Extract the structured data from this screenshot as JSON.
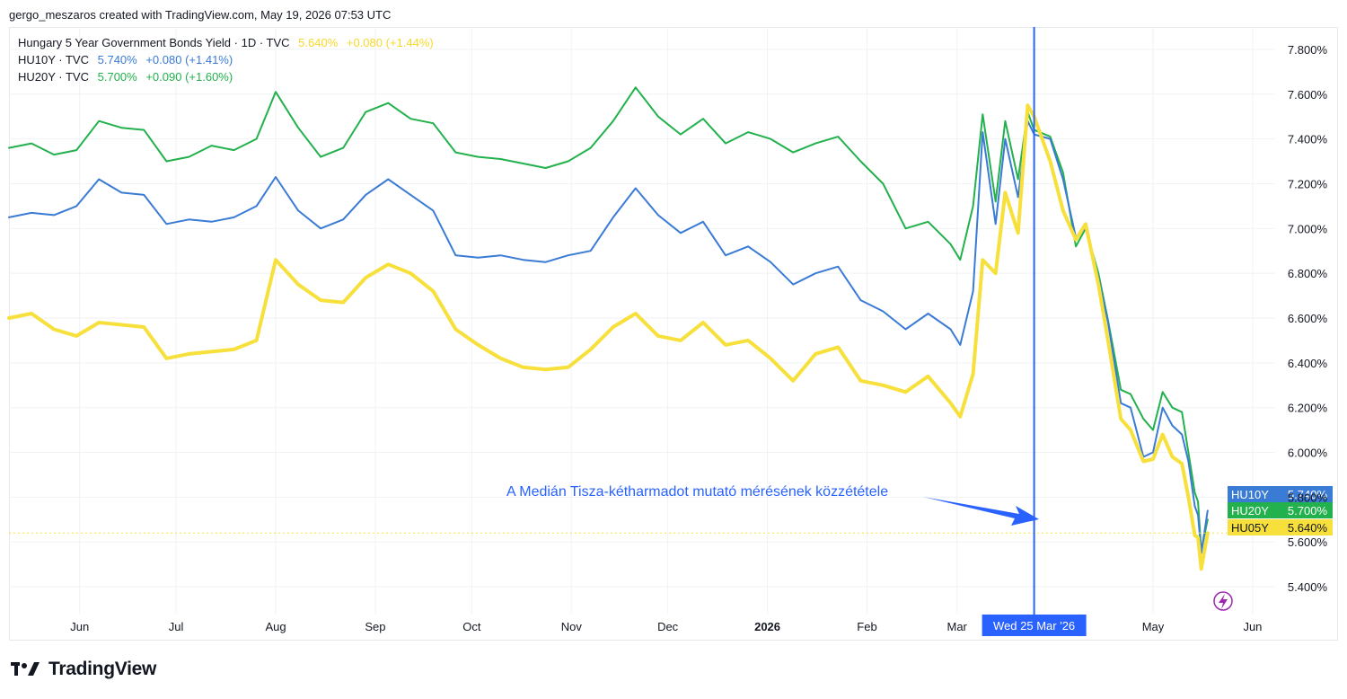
{
  "header": {
    "credit": "gergo_meszaros created with TradingView.com, May 19, 2026 07:53 UTC"
  },
  "legend": [
    {
      "name": "Hungary 5 Year Government Bonds Yield · 1D · TVC",
      "value": "5.640%",
      "change": "+0.080 (+1.44%)",
      "color": "#f7d82a"
    },
    {
      "name": "HU10Y · TVC",
      "value": "5.740%",
      "change": "+0.080 (+1.41%)",
      "color": "#3a7bd5"
    },
    {
      "name": "HU20Y · TVC",
      "value": "5.700%",
      "change": "+0.090 (+1.60%)",
      "color": "#22b14c"
    }
  ],
  "annotation": {
    "text": "A Medián Tisza-kétharmadot mutató mérésének közzététele",
    "color": "#2962ff"
  },
  "crosshair": {
    "date_label": "Wed 25 Mar '26"
  },
  "footer": {
    "logo_text": "TradingView"
  },
  "colors": {
    "hu05y": "#f7e03c",
    "hu10y": "#3a7bd5",
    "hu20y": "#22b14c",
    "crosshair": "#2962ff",
    "grid": "#f0f2f5"
  },
  "chart_data": {
    "type": "line",
    "ylim": [
      5.28,
      7.9
    ],
    "xlim": [
      "2025-05-10",
      "2026-06-08"
    ],
    "y_ticks": [
      "7.800%",
      "7.600%",
      "7.400%",
      "7.200%",
      "7.000%",
      "6.800%",
      "6.600%",
      "6.400%",
      "6.200%",
      "6.000%",
      "5.800%",
      "5.600%",
      "5.400%"
    ],
    "x_ticks": [
      {
        "label": "Jun",
        "date": "2025-06-01"
      },
      {
        "label": "Jul",
        "date": "2025-07-01"
      },
      {
        "label": "Aug",
        "date": "2025-08-01"
      },
      {
        "label": "Sep",
        "date": "2025-09-01"
      },
      {
        "label": "Oct",
        "date": "2025-10-01"
      },
      {
        "label": "Nov",
        "date": "2025-11-01"
      },
      {
        "label": "Dec",
        "date": "2025-12-01"
      },
      {
        "label": "2026",
        "date": "2026-01-01",
        "bold": true
      },
      {
        "label": "Feb",
        "date": "2026-02-01"
      },
      {
        "label": "Mar",
        "date": "2026-03-01"
      },
      {
        "label": "May",
        "date": "2026-05-01"
      },
      {
        "label": "Jun",
        "date": "2026-06-01"
      }
    ],
    "crosshair_date": "2026-03-25",
    "last_value_line": 5.64,
    "series": [
      {
        "name": "HU20Y",
        "tag": "HU20Y",
        "last": "5.700%",
        "color": "#22b14c",
        "points": [
          [
            "2025-05-10",
            7.36
          ],
          [
            "2025-05-17",
            7.38
          ],
          [
            "2025-05-24",
            7.33
          ],
          [
            "2025-05-31",
            7.35
          ],
          [
            "2025-06-07",
            7.48
          ],
          [
            "2025-06-14",
            7.45
          ],
          [
            "2025-06-21",
            7.44
          ],
          [
            "2025-06-28",
            7.3
          ],
          [
            "2025-07-05",
            7.32
          ],
          [
            "2025-07-12",
            7.37
          ],
          [
            "2025-07-19",
            7.35
          ],
          [
            "2025-07-26",
            7.4
          ],
          [
            "2025-08-01",
            7.61
          ],
          [
            "2025-08-08",
            7.45
          ],
          [
            "2025-08-15",
            7.32
          ],
          [
            "2025-08-22",
            7.36
          ],
          [
            "2025-08-29",
            7.52
          ],
          [
            "2025-09-05",
            7.56
          ],
          [
            "2025-09-12",
            7.49
          ],
          [
            "2025-09-19",
            7.47
          ],
          [
            "2025-09-26",
            7.34
          ],
          [
            "2025-10-03",
            7.32
          ],
          [
            "2025-10-10",
            7.31
          ],
          [
            "2025-10-17",
            7.29
          ],
          [
            "2025-10-24",
            7.27
          ],
          [
            "2025-10-31",
            7.3
          ],
          [
            "2025-11-07",
            7.36
          ],
          [
            "2025-11-14",
            7.48
          ],
          [
            "2025-11-21",
            7.63
          ],
          [
            "2025-11-28",
            7.5
          ],
          [
            "2025-12-05",
            7.42
          ],
          [
            "2025-12-12",
            7.49
          ],
          [
            "2025-12-19",
            7.38
          ],
          [
            "2025-12-26",
            7.43
          ],
          [
            "2026-01-02",
            7.4
          ],
          [
            "2026-01-09",
            7.34
          ],
          [
            "2026-01-16",
            7.38
          ],
          [
            "2026-01-23",
            7.41
          ],
          [
            "2026-01-30",
            7.3
          ],
          [
            "2026-02-06",
            7.2
          ],
          [
            "2026-02-13",
            7.0
          ],
          [
            "2026-02-20",
            7.03
          ],
          [
            "2026-02-27",
            6.93
          ],
          [
            "2026-03-02",
            6.86
          ],
          [
            "2026-03-06",
            7.1
          ],
          [
            "2026-03-09",
            7.51
          ],
          [
            "2026-03-13",
            7.12
          ],
          [
            "2026-03-16",
            7.48
          ],
          [
            "2026-03-20",
            7.22
          ],
          [
            "2026-03-23",
            7.52
          ],
          [
            "2026-03-25",
            7.44
          ],
          [
            "2026-03-30",
            7.41
          ],
          [
            "2026-04-03",
            7.25
          ],
          [
            "2026-04-07",
            6.92
          ],
          [
            "2026-04-10",
            7.0
          ],
          [
            "2026-04-14",
            6.8
          ],
          [
            "2026-04-17",
            6.59
          ],
          [
            "2026-04-21",
            6.28
          ],
          [
            "2026-04-24",
            6.26
          ],
          [
            "2026-04-28",
            6.15
          ],
          [
            "2026-05-01",
            6.1
          ],
          [
            "2026-05-04",
            6.27
          ],
          [
            "2026-05-07",
            6.2
          ],
          [
            "2026-05-10",
            6.18
          ],
          [
            "2026-05-12",
            6.0
          ],
          [
            "2026-05-14",
            5.82
          ],
          [
            "2026-05-15",
            5.78
          ],
          [
            "2026-05-16",
            5.56
          ],
          [
            "2026-05-18",
            5.7
          ]
        ]
      },
      {
        "name": "HU10Y",
        "tag": "HU10Y",
        "last": "5.740%",
        "color": "#3a7bd5",
        "points": [
          [
            "2025-05-10",
            7.05
          ],
          [
            "2025-05-17",
            7.07
          ],
          [
            "2025-05-24",
            7.06
          ],
          [
            "2025-05-31",
            7.1
          ],
          [
            "2025-06-07",
            7.22
          ],
          [
            "2025-06-14",
            7.16
          ],
          [
            "2025-06-21",
            7.15
          ],
          [
            "2025-06-28",
            7.02
          ],
          [
            "2025-07-05",
            7.04
          ],
          [
            "2025-07-12",
            7.03
          ],
          [
            "2025-07-19",
            7.05
          ],
          [
            "2025-07-26",
            7.1
          ],
          [
            "2025-08-01",
            7.23
          ],
          [
            "2025-08-08",
            7.08
          ],
          [
            "2025-08-15",
            7.0
          ],
          [
            "2025-08-22",
            7.04
          ],
          [
            "2025-08-29",
            7.15
          ],
          [
            "2025-09-05",
            7.22
          ],
          [
            "2025-09-12",
            7.15
          ],
          [
            "2025-09-19",
            7.08
          ],
          [
            "2025-09-26",
            6.88
          ],
          [
            "2025-10-03",
            6.87
          ],
          [
            "2025-10-10",
            6.88
          ],
          [
            "2025-10-17",
            6.86
          ],
          [
            "2025-10-24",
            6.85
          ],
          [
            "2025-10-31",
            6.88
          ],
          [
            "2025-11-07",
            6.9
          ],
          [
            "2025-11-14",
            7.05
          ],
          [
            "2025-11-21",
            7.18
          ],
          [
            "2025-11-28",
            7.06
          ],
          [
            "2025-12-05",
            6.98
          ],
          [
            "2025-12-12",
            7.03
          ],
          [
            "2025-12-19",
            6.88
          ],
          [
            "2025-12-26",
            6.92
          ],
          [
            "2026-01-02",
            6.85
          ],
          [
            "2026-01-09",
            6.75
          ],
          [
            "2026-01-16",
            6.8
          ],
          [
            "2026-01-23",
            6.83
          ],
          [
            "2026-01-30",
            6.68
          ],
          [
            "2026-02-06",
            6.63
          ],
          [
            "2026-02-13",
            6.55
          ],
          [
            "2026-02-20",
            6.62
          ],
          [
            "2026-02-27",
            6.55
          ],
          [
            "2026-03-02",
            6.48
          ],
          [
            "2026-03-06",
            6.72
          ],
          [
            "2026-03-09",
            7.43
          ],
          [
            "2026-03-13",
            7.02
          ],
          [
            "2026-03-16",
            7.4
          ],
          [
            "2026-03-20",
            7.14
          ],
          [
            "2026-03-23",
            7.48
          ],
          [
            "2026-03-25",
            7.42
          ],
          [
            "2026-03-30",
            7.4
          ],
          [
            "2026-04-03",
            7.22
          ],
          [
            "2026-04-07",
            6.96
          ],
          [
            "2026-04-10",
            7.0
          ],
          [
            "2026-04-14",
            6.78
          ],
          [
            "2026-04-17",
            6.58
          ],
          [
            "2026-04-21",
            6.22
          ],
          [
            "2026-04-24",
            6.2
          ],
          [
            "2026-04-28",
            5.98
          ],
          [
            "2026-05-01",
            6.0
          ],
          [
            "2026-05-04",
            6.2
          ],
          [
            "2026-05-07",
            6.12
          ],
          [
            "2026-05-10",
            6.08
          ],
          [
            "2026-05-12",
            5.96
          ],
          [
            "2026-05-14",
            5.76
          ],
          [
            "2026-05-15",
            5.72
          ],
          [
            "2026-05-16",
            5.55
          ],
          [
            "2026-05-18",
            5.74
          ]
        ]
      },
      {
        "name": "HU05Y",
        "tag": "HU05Y",
        "last": "5.640%",
        "color": "#f7e03c",
        "points": [
          [
            "2025-05-10",
            6.6
          ],
          [
            "2025-05-17",
            6.62
          ],
          [
            "2025-05-24",
            6.55
          ],
          [
            "2025-05-31",
            6.52
          ],
          [
            "2025-06-07",
            6.58
          ],
          [
            "2025-06-14",
            6.57
          ],
          [
            "2025-06-21",
            6.56
          ],
          [
            "2025-06-28",
            6.42
          ],
          [
            "2025-07-05",
            6.44
          ],
          [
            "2025-07-12",
            6.45
          ],
          [
            "2025-07-19",
            6.46
          ],
          [
            "2025-07-26",
            6.5
          ],
          [
            "2025-08-01",
            6.86
          ],
          [
            "2025-08-08",
            6.75
          ],
          [
            "2025-08-15",
            6.68
          ],
          [
            "2025-08-22",
            6.67
          ],
          [
            "2025-08-29",
            6.78
          ],
          [
            "2025-09-05",
            6.84
          ],
          [
            "2025-09-12",
            6.8
          ],
          [
            "2025-09-19",
            6.72
          ],
          [
            "2025-09-26",
            6.55
          ],
          [
            "2025-10-03",
            6.48
          ],
          [
            "2025-10-10",
            6.42
          ],
          [
            "2025-10-17",
            6.38
          ],
          [
            "2025-10-24",
            6.37
          ],
          [
            "2025-10-31",
            6.38
          ],
          [
            "2025-11-07",
            6.46
          ],
          [
            "2025-11-14",
            6.56
          ],
          [
            "2025-11-21",
            6.62
          ],
          [
            "2025-11-28",
            6.52
          ],
          [
            "2025-12-05",
            6.5
          ],
          [
            "2025-12-12",
            6.58
          ],
          [
            "2025-12-19",
            6.48
          ],
          [
            "2025-12-26",
            6.5
          ],
          [
            "2026-01-02",
            6.42
          ],
          [
            "2026-01-09",
            6.32
          ],
          [
            "2026-01-16",
            6.44
          ],
          [
            "2026-01-23",
            6.47
          ],
          [
            "2026-01-30",
            6.32
          ],
          [
            "2026-02-06",
            6.3
          ],
          [
            "2026-02-13",
            6.27
          ],
          [
            "2026-02-20",
            6.34
          ],
          [
            "2026-02-27",
            6.22
          ],
          [
            "2026-03-02",
            6.16
          ],
          [
            "2026-03-06",
            6.35
          ],
          [
            "2026-03-09",
            6.86
          ],
          [
            "2026-03-13",
            6.8
          ],
          [
            "2026-03-16",
            7.16
          ],
          [
            "2026-03-20",
            6.98
          ],
          [
            "2026-03-23",
            7.55
          ],
          [
            "2026-03-25",
            7.5
          ],
          [
            "2026-03-30",
            7.3
          ],
          [
            "2026-04-03",
            7.08
          ],
          [
            "2026-04-07",
            6.95
          ],
          [
            "2026-04-10",
            7.02
          ],
          [
            "2026-04-14",
            6.75
          ],
          [
            "2026-04-17",
            6.5
          ],
          [
            "2026-04-21",
            6.15
          ],
          [
            "2026-04-24",
            6.1
          ],
          [
            "2026-04-28",
            5.96
          ],
          [
            "2026-05-01",
            5.97
          ],
          [
            "2026-05-04",
            6.08
          ],
          [
            "2026-05-07",
            5.98
          ],
          [
            "2026-05-10",
            5.95
          ],
          [
            "2026-05-12",
            5.8
          ],
          [
            "2026-05-14",
            5.63
          ],
          [
            "2026-05-15",
            5.62
          ],
          [
            "2026-05-16",
            5.48
          ],
          [
            "2026-05-18",
            5.64
          ]
        ]
      }
    ]
  }
}
